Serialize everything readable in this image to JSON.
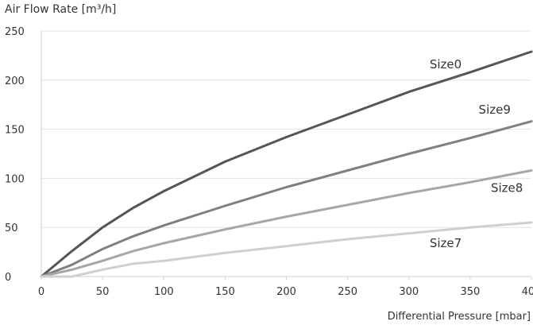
{
  "chart_data": {
    "type": "line",
    "ylabel": "Air Flow Rate [m³/h]",
    "xlabel": "Differential Pressure [mbar]",
    "xlim": [
      0,
      400
    ],
    "ylim": [
      0,
      250
    ],
    "xticks": [
      "0",
      "50",
      "100",
      "150",
      "200",
      "250",
      "300",
      "350",
      "400"
    ],
    "yticks": [
      "0",
      "50",
      "100",
      "150",
      "200",
      "250"
    ],
    "grid": "horizontal",
    "series": [
      {
        "name": "Size0",
        "color": "#555555",
        "label_at": [
          330,
          212
        ],
        "points": [
          [
            0,
            0
          ],
          [
            25,
            26
          ],
          [
            50,
            50
          ],
          [
            75,
            70
          ],
          [
            100,
            87
          ],
          [
            150,
            117
          ],
          [
            200,
            142
          ],
          [
            250,
            165
          ],
          [
            300,
            188
          ],
          [
            350,
            208
          ],
          [
            400,
            229
          ]
        ]
      },
      {
        "name": "Size9",
        "color": "#808080",
        "label_at": [
          370,
          166
        ],
        "points": [
          [
            0,
            0
          ],
          [
            25,
            12
          ],
          [
            50,
            28
          ],
          [
            75,
            41
          ],
          [
            100,
            52
          ],
          [
            150,
            72
          ],
          [
            200,
            91
          ],
          [
            250,
            108
          ],
          [
            300,
            125
          ],
          [
            350,
            141
          ],
          [
            400,
            158
          ]
        ]
      },
      {
        "name": "Size8",
        "color": "#a6a6a6",
        "label_at": [
          380,
          86
        ],
        "points": [
          [
            0,
            0
          ],
          [
            25,
            7
          ],
          [
            50,
            16
          ],
          [
            75,
            26
          ],
          [
            100,
            34
          ],
          [
            150,
            48
          ],
          [
            200,
            61
          ],
          [
            250,
            73
          ],
          [
            300,
            85
          ],
          [
            350,
            96
          ],
          [
            400,
            108
          ]
        ]
      },
      {
        "name": "Size7",
        "color": "#cfcfcf",
        "label_at": [
          330,
          30
        ],
        "points": [
          [
            0,
            0
          ],
          [
            25,
            0
          ],
          [
            50,
            7
          ],
          [
            75,
            13
          ],
          [
            100,
            16
          ],
          [
            150,
            24
          ],
          [
            200,
            31
          ],
          [
            250,
            38
          ],
          [
            300,
            44
          ],
          [
            350,
            50
          ],
          [
            400,
            55
          ]
        ]
      }
    ]
  }
}
